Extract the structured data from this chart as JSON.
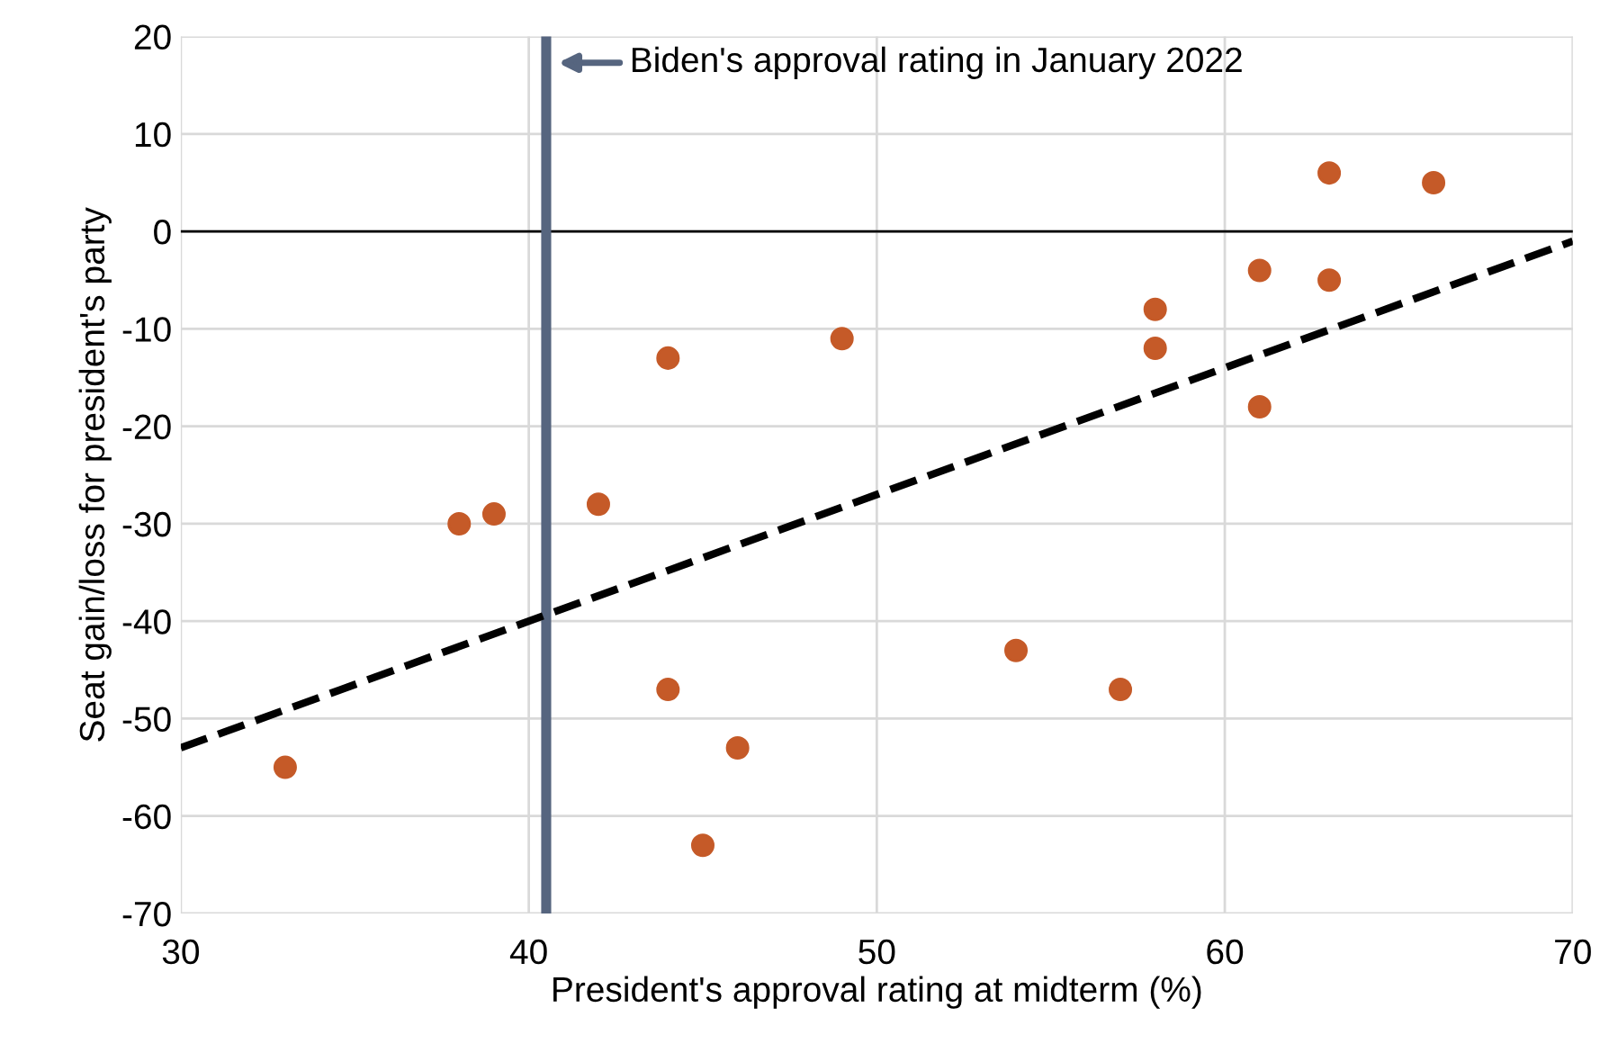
{
  "chart_data": {
    "type": "scatter",
    "xlabel": "President's approval rating at midterm (%)",
    "ylabel": "Seat gain/loss for president's party",
    "xlim": [
      30,
      70
    ],
    "ylim": [
      -70,
      20
    ],
    "xticks": [
      30,
      40,
      50,
      60,
      70
    ],
    "yticks": [
      -70,
      -60,
      -50,
      -40,
      -30,
      -20,
      -10,
      0,
      10,
      20
    ],
    "grid": true,
    "marker": "circle",
    "series": [
      {
        "color": "#c55a28",
        "x": [
          33,
          38,
          39,
          42,
          44,
          44,
          45,
          46,
          49,
          54,
          57,
          58,
          58,
          61,
          61,
          63,
          63,
          66
        ],
        "values": [
          -55,
          -30,
          -29,
          -28,
          -13,
          -47,
          -63,
          -53,
          -11,
          -43,
          -47,
          -8,
          -12,
          -4,
          -18,
          6,
          -5,
          5
        ]
      },
      {
        "type": "line",
        "color": "#000000",
        "line_style": "dashed",
        "marker": "none",
        "x": [
          30,
          70
        ],
        "values": [
          -53,
          -1
        ]
      }
    ],
    "ref_lines": [
      {
        "axis": "y",
        "value": 0,
        "color": "#000000"
      },
      {
        "axis": "x",
        "value": 40.5,
        "color": "#56657f",
        "label": "Biden's approval rating in January 2022"
      }
    ]
  }
}
